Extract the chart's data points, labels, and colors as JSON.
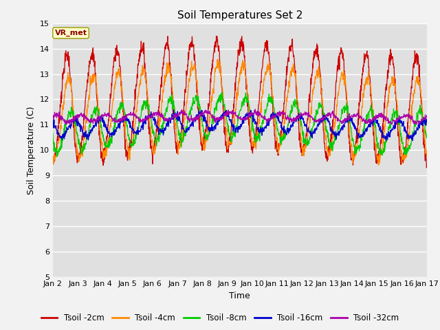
{
  "title": "Soil Temperatures Set 2",
  "xlabel": "Time",
  "ylabel": "Soil Temperature (C)",
  "ylim": [
    5.0,
    15.0
  ],
  "yticks": [
    5.0,
    6.0,
    7.0,
    8.0,
    9.0,
    10.0,
    11.0,
    12.0,
    13.0,
    14.0,
    15.0
  ],
  "xtick_labels": [
    "Jan 2",
    "Jan 3",
    "Jan 4",
    "Jan 5",
    "Jan 6",
    "Jan 7",
    "Jan 8",
    "Jan 9",
    "Jan 10",
    "Jan 11",
    "Jan 12",
    "Jan 13",
    "Jan 14",
    "Jan 15",
    "Jan 16",
    "Jan 17"
  ],
  "series_colors": [
    "#cc0000",
    "#ff8800",
    "#00cc00",
    "#0000cc",
    "#aa00aa"
  ],
  "series_labels": [
    "Tsoil -2cm",
    "Tsoil -4cm",
    "Tsoil -8cm",
    "Tsoil -16cm",
    "Tsoil -32cm"
  ],
  "legend_label": "VR_met",
  "plot_bg_color": "#e0e0e0",
  "fig_bg_color": "#f2f2f2",
  "title_fontsize": 11,
  "axis_label_fontsize": 9,
  "tick_fontsize": 8,
  "n_points": 1440,
  "time_days": 15
}
